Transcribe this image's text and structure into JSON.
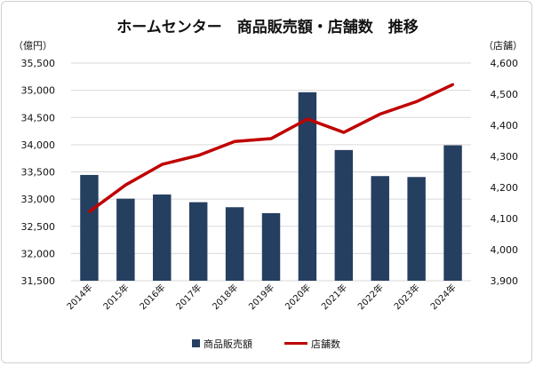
{
  "chart_data": {
    "type": "bar+line",
    "title": "ホームセンター　商品販売額・店舗数　推移",
    "y_left_unit": "（億円）",
    "y_right_unit": "（店舗）",
    "categories": [
      "2014年",
      "2015年",
      "2016年",
      "2017年",
      "2018年",
      "2019年",
      "2020年",
      "2021年",
      "2022年",
      "2023年",
      "2024年"
    ],
    "y_left_range": [
      31500,
      35500
    ],
    "y_left_ticks": [
      "31,500",
      "32,000",
      "32,500",
      "33,000",
      "33,500",
      "34,000",
      "34,500",
      "35,000",
      "35,500"
    ],
    "y_right_range": [
      3900,
      4600
    ],
    "y_right_ticks": [
      "3,900",
      "4,000",
      "4,100",
      "4,200",
      "4,300",
      "4,400",
      "4,500",
      "4,600"
    ],
    "grid": true,
    "legend_position": "bottom",
    "series": [
      {
        "name": "商品販売額",
        "type": "bar",
        "axis": "left",
        "color": "#253f60",
        "values": [
          33444,
          33008,
          33085,
          32943,
          32851,
          32742,
          34964,
          33902,
          33423,
          33406,
          33989
        ]
      },
      {
        "name": "店舗数",
        "type": "line",
        "axis": "right",
        "color": "#c00000",
        "values": [
          4122,
          4208,
          4274,
          4303,
          4348,
          4357,
          4420,
          4377,
          4436,
          4476,
          4531
        ]
      }
    ]
  }
}
